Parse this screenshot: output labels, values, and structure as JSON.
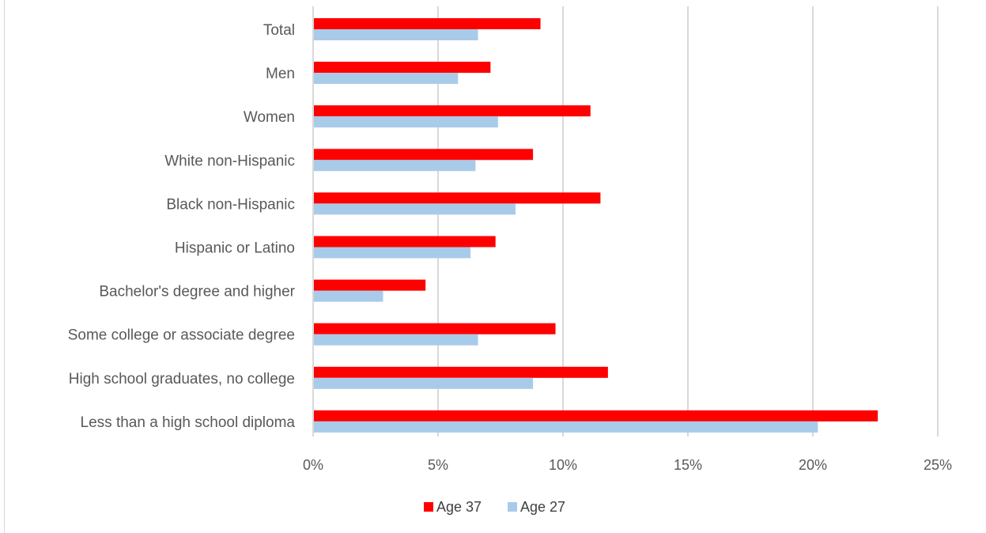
{
  "chart_data": {
    "type": "bar",
    "orientation": "horizontal",
    "categories": [
      "Total",
      "Men",
      "Women",
      "White non-Hispanic",
      "Black non-Hispanic",
      "Hispanic or Latino",
      "Bachelor's degree and higher",
      "Some college or associate degree",
      "High school graduates, no college",
      "Less than a high school diploma"
    ],
    "series": [
      {
        "name": "Age 37",
        "color": "#ff0000",
        "values": [
          9.1,
          7.1,
          11.1,
          8.8,
          11.5,
          7.3,
          4.5,
          9.7,
          11.8,
          22.6
        ]
      },
      {
        "name": "Age 27",
        "color": "#a9cbea",
        "values": [
          6.6,
          5.8,
          7.4,
          6.5,
          8.1,
          6.3,
          2.8,
          6.6,
          8.8,
          20.2
        ]
      }
    ],
    "xlim": [
      0,
      25
    ],
    "xticks": [
      "0%",
      "5%",
      "10%",
      "15%",
      "20%",
      "25%"
    ],
    "xtick_values": [
      0,
      5,
      10,
      15,
      20,
      25
    ],
    "grid": true,
    "legend_position": "bottom",
    "title": "",
    "xlabel": "",
    "ylabel": ""
  }
}
